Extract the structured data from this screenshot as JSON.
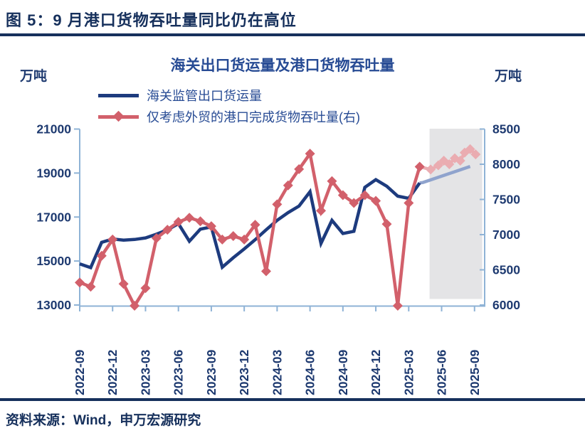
{
  "figure": {
    "title": "图 5：9 月港口货物吞吐量同比仍在高位",
    "source": "资料来源：Wind，申万宏源研究"
  },
  "chart_data": {
    "type": "line",
    "title": "海关出口货运量及港口货物吞吐量",
    "unit_left": "万吨",
    "unit_right": "万吨",
    "legend": [
      {
        "name": "海关监管出口货运量",
        "color": "#1d3b7e",
        "axis": "left",
        "marker": "none"
      },
      {
        "name": "仅考虑外贸的港口完成货物吞吐量(右)",
        "color": "#d2606b",
        "axis": "right",
        "marker": "diamond"
      }
    ],
    "x_tick_labels": [
      "2022-09",
      "2022-12",
      "2023-03",
      "2023-06",
      "2023-09",
      "2023-12",
      "2024-03",
      "2024-06",
      "2024-09",
      "2024-12",
      "2025-03",
      "2025-06",
      "2025-09"
    ],
    "months_per_tick": 3,
    "n_months": 37,
    "y_left": {
      "min": 13000,
      "max": 21000,
      "ticks": [
        21000,
        19000,
        17000,
        15000,
        13000
      ]
    },
    "y_right": {
      "min": 6000,
      "max": 8500,
      "ticks": [
        8500,
        8000,
        7500,
        7000,
        6500,
        6000
      ]
    },
    "grid": "off",
    "legend_position": "top-left",
    "highlight_band": {
      "x_start_index": 31.9,
      "x_end_index": 36.7,
      "color": "#e4e4e6"
    },
    "axis_color": "#8fb3d6",
    "series": {
      "export_freight_solid": {
        "label": "海关监管出口货运量",
        "axis": "left",
        "color": "#1d3b7e",
        "marker": "none",
        "style": "solid",
        "points": [
          [
            0,
            14870
          ],
          [
            1,
            14700
          ],
          [
            2,
            15850
          ],
          [
            3,
            16000
          ],
          [
            4,
            15950
          ],
          [
            5,
            15980
          ],
          [
            6,
            16050
          ],
          [
            7,
            16220
          ],
          [
            8,
            16420
          ],
          [
            9,
            16700
          ],
          [
            10,
            15900
          ],
          [
            11,
            16450
          ],
          [
            12,
            16550
          ],
          [
            13,
            14720
          ],
          [
            14,
            15150
          ],
          [
            15,
            15550
          ],
          [
            16,
            15970
          ],
          [
            17,
            16420
          ],
          [
            18,
            16850
          ],
          [
            19,
            17200
          ],
          [
            20,
            17500
          ],
          [
            21,
            18150
          ],
          [
            22,
            15800
          ],
          [
            23,
            16850
          ],
          [
            24,
            16250
          ],
          [
            25,
            16350
          ],
          [
            26,
            18350
          ],
          [
            27,
            18700
          ],
          [
            28,
            18400
          ],
          [
            29,
            17950
          ],
          [
            30,
            17850
          ],
          [
            31,
            18550
          ]
        ]
      },
      "export_freight_faded": {
        "label": "海关监管出口货运量",
        "axis": "left",
        "color": "#8fa3cd",
        "marker": "none",
        "style": "faded",
        "points": [
          [
            31,
            18550
          ],
          [
            31.3,
            18570
          ],
          [
            35.6,
            19300
          ]
        ]
      },
      "port_throughput_solid": {
        "label": "仅考虑外贸的港口完成货物吞吐量(右)",
        "axis": "right",
        "color": "#d2606b",
        "marker": "diamond",
        "style": "solid",
        "points": [
          [
            0,
            6320
          ],
          [
            1,
            6260
          ],
          [
            2,
            6700
          ],
          [
            3,
            6930
          ],
          [
            4,
            6300
          ],
          [
            5,
            5990
          ],
          [
            6,
            6240
          ],
          [
            7,
            6950
          ],
          [
            8,
            7070
          ],
          [
            9,
            7180
          ],
          [
            10,
            7240
          ],
          [
            11,
            7190
          ],
          [
            12,
            7120
          ],
          [
            13,
            6930
          ],
          [
            14,
            6980
          ],
          [
            15,
            6930
          ],
          [
            16,
            7140
          ],
          [
            17,
            6480
          ],
          [
            18,
            7430
          ],
          [
            19,
            7700
          ],
          [
            20,
            7930
          ],
          [
            21,
            8150
          ],
          [
            22,
            7340
          ],
          [
            23,
            7760
          ],
          [
            24,
            7560
          ],
          [
            25,
            7450
          ],
          [
            26,
            7560
          ],
          [
            27,
            7480
          ],
          [
            28,
            7150
          ],
          [
            29,
            5990
          ],
          [
            30,
            7450
          ],
          [
            31,
            7965
          ]
        ]
      },
      "port_throughput_faded": {
        "label": "仅考虑外贸的港口完成货物吞吐量(右)",
        "axis": "right",
        "color": "#eaacb1",
        "marker": "diamond",
        "style": "faded",
        "points": [
          [
            31,
            7965
          ],
          [
            32,
            7925
          ],
          [
            32.7,
            7985
          ],
          [
            33.2,
            8050
          ],
          [
            33.7,
            8000
          ],
          [
            34.2,
            8085
          ],
          [
            34.7,
            8050
          ],
          [
            35.1,
            8165
          ],
          [
            35.6,
            8215
          ],
          [
            36.1,
            8140
          ]
        ]
      }
    }
  }
}
